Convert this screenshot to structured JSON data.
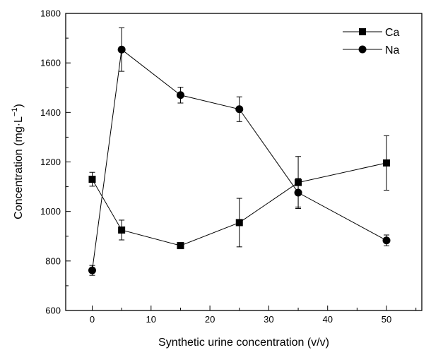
{
  "chart_data": {
    "type": "line",
    "xlabel": "Synthetic urine concentration (v/v)",
    "ylabel_main": "Concentration (mg·L",
    "ylabel_sup": "−1",
    "ylabel_close": ")",
    "xlim": [
      -4.5,
      56
    ],
    "ylim": [
      600,
      1800
    ],
    "xticks": [
      0,
      10,
      20,
      30,
      40,
      50
    ],
    "yticks": [
      600,
      800,
      1000,
      1200,
      1400,
      1600,
      1800
    ],
    "xtick_labels": [
      "0",
      "10",
      "20",
      "30",
      "40",
      "50"
    ],
    "ytick_labels": [
      "600",
      "800",
      "1000",
      "1200",
      "1400",
      "1600",
      "1800"
    ],
    "legend_position": "top-right",
    "series": [
      {
        "name": "Ca",
        "marker": "square",
        "x": [
          0,
          5,
          15,
          25,
          35,
          50
        ],
        "y": [
          1130,
          925,
          862,
          955,
          1117,
          1196
        ],
        "err": [
          28,
          40,
          5,
          98,
          105,
          110
        ]
      },
      {
        "name": "Na",
        "marker": "circle",
        "x": [
          0,
          5,
          15,
          25,
          35,
          50
        ],
        "y": [
          762,
          1654,
          1470,
          1413,
          1076,
          883
        ],
        "err": [
          20,
          88,
          32,
          50,
          58,
          22
        ]
      }
    ],
    "color": "#000000"
  }
}
